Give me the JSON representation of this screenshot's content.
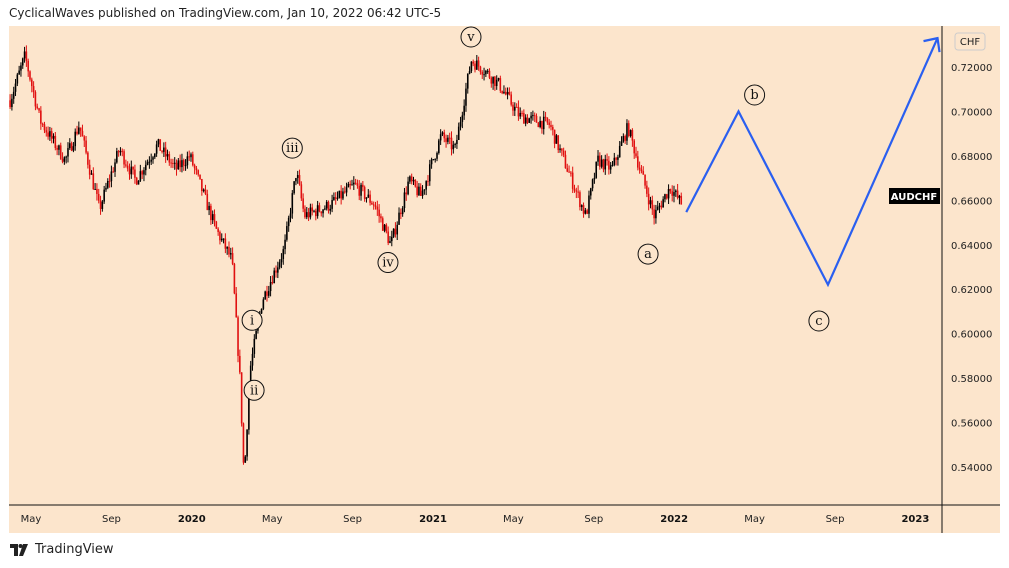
{
  "header": {
    "text": "CyclicalWaves published on TradingView.com, Jan 10, 2022 06:42 UTC-5"
  },
  "brand": {
    "label": "TradingView"
  },
  "colors": {
    "background": "#fce5cc",
    "up": "#000000",
    "down": "#e01010",
    "projection": "#2a5ff0"
  },
  "chart_data": {
    "type": "candlestick",
    "symbol": "AUDCHF",
    "currency": "CHF",
    "x_unit": "months since Jan 2019",
    "xlim": [
      2.5,
      50
    ],
    "ylim": [
      0.528,
      0.745
    ],
    "x_ticks": [
      {
        "m": 4,
        "label": "May",
        "bold": false
      },
      {
        "m": 8,
        "label": "Sep",
        "bold": false
      },
      {
        "m": 12,
        "label": "2020",
        "bold": true
      },
      {
        "m": 16,
        "label": "May",
        "bold": false
      },
      {
        "m": 20,
        "label": "Sep",
        "bold": false
      },
      {
        "m": 24,
        "label": "2021",
        "bold": true
      },
      {
        "m": 28,
        "label": "May",
        "bold": false
      },
      {
        "m": 32,
        "label": "Sep",
        "bold": false
      },
      {
        "m": 36,
        "label": "2022",
        "bold": true
      },
      {
        "m": 40,
        "label": "May",
        "bold": false
      },
      {
        "m": 44,
        "label": "Sep",
        "bold": false
      },
      {
        "m": 48,
        "label": "2023",
        "bold": true
      }
    ],
    "y_ticks": [
      "0.72000",
      "0.70000",
      "0.68000",
      "0.66000",
      "0.64000",
      "0.62000",
      "0.60000",
      "0.58000",
      "0.56000",
      "0.54000"
    ],
    "price_path": [
      [
        2.96,
        0.705
      ],
      [
        3.7,
        0.725
      ],
      [
        4.45,
        0.696
      ],
      [
        5.7,
        0.678
      ],
      [
        6.4,
        0.694
      ],
      [
        7.4,
        0.656
      ],
      [
        8.4,
        0.683
      ],
      [
        9.2,
        0.669
      ],
      [
        10.3,
        0.685
      ],
      [
        11.2,
        0.674
      ],
      [
        11.9,
        0.68
      ],
      [
        13.2,
        0.647
      ],
      [
        14.0,
        0.633
      ],
      [
        14.4,
        0.579
      ],
      [
        14.6,
        0.535
      ],
      [
        14.9,
        0.584
      ],
      [
        15.5,
        0.615
      ],
      [
        16.6,
        0.638
      ],
      [
        17.2,
        0.673
      ],
      [
        17.6,
        0.653
      ],
      [
        18.9,
        0.658
      ],
      [
        20.1,
        0.667
      ],
      [
        21.1,
        0.658
      ],
      [
        21.9,
        0.64
      ],
      [
        22.8,
        0.669
      ],
      [
        23.4,
        0.662
      ],
      [
        24.4,
        0.689
      ],
      [
        25.1,
        0.683
      ],
      [
        25.9,
        0.723
      ],
      [
        26.5,
        0.719
      ],
      [
        27.3,
        0.712
      ],
      [
        28.3,
        0.698
      ],
      [
        29.8,
        0.694
      ],
      [
        30.6,
        0.676
      ],
      [
        31.6,
        0.653
      ],
      [
        32.2,
        0.678
      ],
      [
        32.9,
        0.674
      ],
      [
        33.7,
        0.693
      ],
      [
        34.3,
        0.674
      ],
      [
        35.0,
        0.653
      ],
      [
        35.8,
        0.666
      ],
      [
        36.4,
        0.658
      ]
    ],
    "projection": [
      [
        36.6,
        0.6547
      ],
      [
        39.2,
        0.7
      ],
      [
        43.65,
        0.622
      ],
      [
        49.1,
        0.733
      ]
    ],
    "wave_labels": [
      {
        "text": "i",
        "m": 15.0,
        "v": 0.606
      },
      {
        "text": "ii",
        "m": 15.1,
        "v": 0.5745
      },
      {
        "text": "iii",
        "m": 17.0,
        "v": 0.6835
      },
      {
        "text": "iv",
        "m": 21.76,
        "v": 0.632
      },
      {
        "text": "v",
        "m": 25.89,
        "v": 0.7335
      },
      {
        "text": "a",
        "m": 34.7,
        "v": 0.6358
      },
      {
        "text": "b",
        "m": 40.0,
        "v": 0.7074
      },
      {
        "text": "c",
        "m": 43.2,
        "v": 0.6057
      }
    ]
  }
}
